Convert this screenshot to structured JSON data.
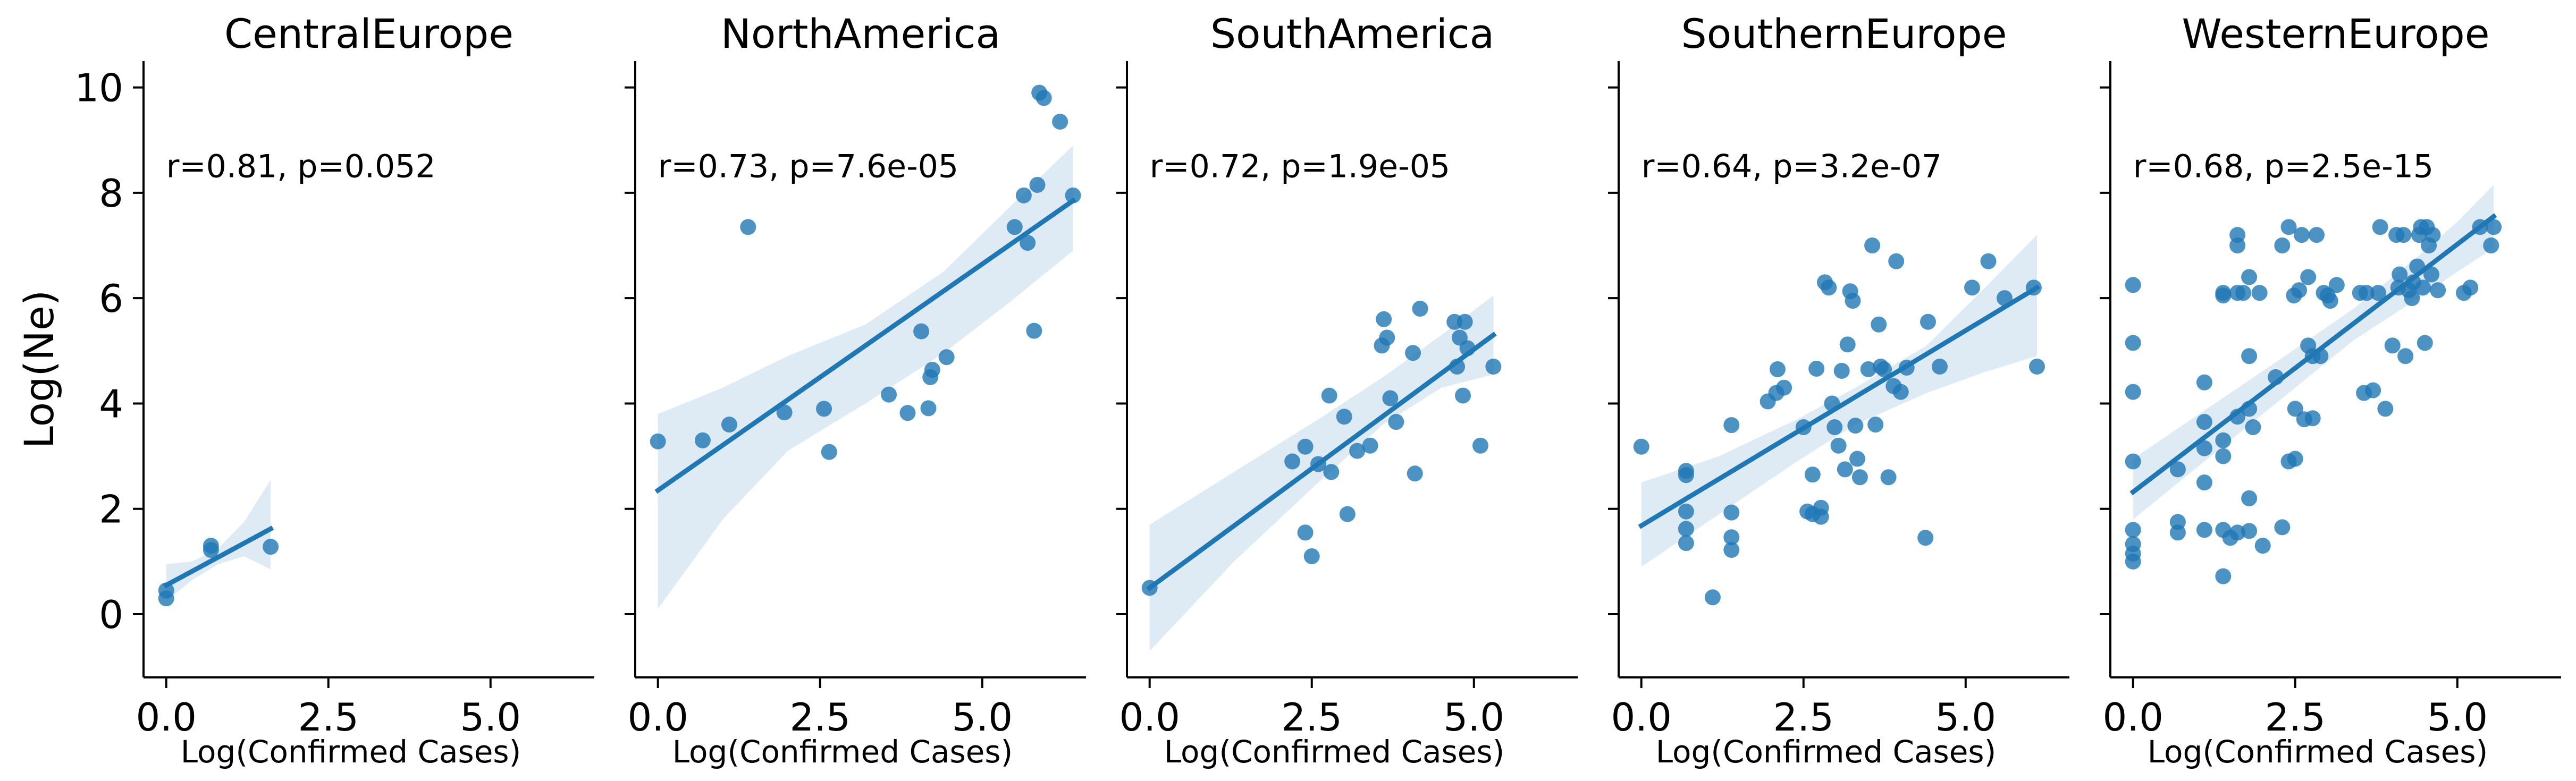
{
  "chart_data": {
    "type": "scatter",
    "layout": "facet-grid",
    "sharey": true,
    "ylabel": "Log(Ne)",
    "xlabel": "Log(Confirmed Cases)",
    "xlim": [
      -0.35,
      6.6
    ],
    "ylim": [
      -1.2,
      10.5
    ],
    "xticks": [
      0.0,
      2.5,
      5.0
    ],
    "xtick_labels": [
      "0.0",
      "2.5",
      "5.0"
    ],
    "yticks": [
      0,
      2,
      4,
      6,
      8,
      10
    ],
    "ytick_labels": [
      "0",
      "2",
      "4",
      "6",
      "8",
      "10"
    ],
    "colors": {
      "points": "#1f77b4",
      "line": "#1f77b4",
      "band": "#1f77b4"
    },
    "panels": [
      {
        "title": "CentralEurope",
        "annotation": "r=0.81, p=0.052",
        "points": [
          [
            0.0,
            0.3
          ],
          [
            0.0,
            0.45
          ],
          [
            0.69,
            1.22
          ],
          [
            0.69,
            1.3
          ],
          [
            1.61,
            1.28
          ]
        ],
        "fit": {
          "x": [
            0.0,
            1.61
          ],
          "y": [
            0.55,
            1.62
          ]
        },
        "ci_band": {
          "x": [
            0.0,
            0.4,
            0.8,
            1.2,
            1.61
          ],
          "lower": [
            0.25,
            0.65,
            0.95,
            1.1,
            0.85
          ],
          "upper": [
            0.95,
            1.0,
            1.25,
            1.75,
            2.55
          ]
        }
      },
      {
        "title": "NorthAmerica",
        "annotation": "r=0.73, p=7.6e-05",
        "points": [
          [
            0.0,
            3.28
          ],
          [
            0.69,
            3.3
          ],
          [
            1.1,
            3.6
          ],
          [
            1.39,
            7.35
          ],
          [
            1.95,
            3.83
          ],
          [
            2.56,
            3.9
          ],
          [
            2.64,
            3.08
          ],
          [
            3.56,
            4.17
          ],
          [
            3.85,
            3.82
          ],
          [
            4.06,
            5.37
          ],
          [
            4.17,
            3.91
          ],
          [
            4.2,
            4.5
          ],
          [
            4.23,
            4.64
          ],
          [
            4.45,
            4.88
          ],
          [
            5.5,
            7.35
          ],
          [
            5.64,
            7.95
          ],
          [
            5.7,
            7.05
          ],
          [
            5.8,
            5.38
          ],
          [
            5.85,
            8.15
          ],
          [
            5.88,
            9.9
          ],
          [
            5.95,
            9.8
          ],
          [
            6.2,
            9.35
          ],
          [
            6.4,
            7.95
          ]
        ],
        "fit": {
          "x": [
            0.0,
            6.4
          ],
          "y": [
            2.35,
            7.85
          ]
        },
        "ci_band": {
          "x": [
            0.0,
            1.0,
            2.0,
            3.2,
            4.4,
            5.4,
            6.4
          ],
          "lower": [
            0.1,
            1.8,
            3.1,
            4.0,
            4.95,
            5.9,
            6.9
          ],
          "upper": [
            3.8,
            4.3,
            4.9,
            5.5,
            6.5,
            7.7,
            8.9
          ]
        }
      },
      {
        "title": "SouthAmerica",
        "annotation": "r=0.72, p=1.9e-05",
        "points": [
          [
            0.0,
            0.5
          ],
          [
            2.2,
            2.9
          ],
          [
            2.4,
            3.18
          ],
          [
            2.4,
            1.55
          ],
          [
            2.5,
            1.1
          ],
          [
            2.6,
            2.85
          ],
          [
            2.77,
            4.15
          ],
          [
            2.8,
            2.7
          ],
          [
            3.0,
            3.75
          ],
          [
            3.05,
            1.9
          ],
          [
            3.2,
            3.1
          ],
          [
            3.4,
            3.2
          ],
          [
            3.58,
            5.1
          ],
          [
            3.61,
            5.6
          ],
          [
            3.66,
            5.25
          ],
          [
            3.71,
            4.1
          ],
          [
            3.8,
            3.65
          ],
          [
            4.06,
            4.96
          ],
          [
            4.09,
            2.67
          ],
          [
            4.17,
            5.8
          ],
          [
            4.7,
            5.55
          ],
          [
            4.74,
            4.7
          ],
          [
            4.78,
            5.25
          ],
          [
            4.83,
            4.15
          ],
          [
            4.86,
            5.55
          ],
          [
            4.9,
            5.05
          ],
          [
            5.1,
            3.2
          ],
          [
            5.3,
            4.7
          ]
        ],
        "fit": {
          "x": [
            0.0,
            5.3
          ],
          "y": [
            0.5,
            5.3
          ]
        },
        "ci_band": {
          "x": [
            0.0,
            1.3,
            2.6,
            3.6,
            4.5,
            5.3
          ],
          "lower": [
            -0.7,
            1.0,
            2.5,
            3.6,
            4.3,
            4.55
          ],
          "upper": [
            1.7,
            2.7,
            3.7,
            4.5,
            5.3,
            6.05
          ]
        }
      },
      {
        "title": "SouthernEurope",
        "annotation": "r=0.64, p=3.2e-07",
        "points": [
          [
            0.0,
            3.18
          ],
          [
            0.69,
            2.72
          ],
          [
            0.69,
            2.64
          ],
          [
            0.69,
            1.95
          ],
          [
            0.69,
            1.62
          ],
          [
            0.69,
            1.35
          ],
          [
            1.1,
            0.32
          ],
          [
            1.39,
            3.59
          ],
          [
            1.39,
            1.93
          ],
          [
            1.39,
            1.46
          ],
          [
            1.39,
            1.22
          ],
          [
            1.95,
            4.04
          ],
          [
            2.08,
            4.2
          ],
          [
            2.1,
            4.65
          ],
          [
            2.2,
            4.3
          ],
          [
            2.5,
            3.55
          ],
          [
            2.56,
            1.95
          ],
          [
            2.64,
            2.65
          ],
          [
            2.64,
            1.9
          ],
          [
            2.7,
            4.66
          ],
          [
            2.77,
            2.02
          ],
          [
            2.77,
            1.85
          ],
          [
            2.83,
            6.3
          ],
          [
            2.89,
            6.2
          ],
          [
            2.94,
            4.0
          ],
          [
            2.98,
            3.55
          ],
          [
            3.04,
            3.2
          ],
          [
            3.09,
            4.62
          ],
          [
            3.14,
            2.75
          ],
          [
            3.18,
            5.12
          ],
          [
            3.22,
            6.13
          ],
          [
            3.26,
            5.95
          ],
          [
            3.3,
            3.58
          ],
          [
            3.33,
            2.95
          ],
          [
            3.37,
            2.6
          ],
          [
            3.5,
            4.65
          ],
          [
            3.56,
            7.0
          ],
          [
            3.61,
            3.6
          ],
          [
            3.66,
            5.5
          ],
          [
            3.69,
            4.7
          ],
          [
            3.74,
            4.65
          ],
          [
            3.81,
            2.6
          ],
          [
            3.89,
            4.33
          ],
          [
            3.93,
            6.7
          ],
          [
            4.0,
            4.22
          ],
          [
            4.09,
            4.68
          ],
          [
            4.38,
            1.45
          ],
          [
            4.42,
            5.55
          ],
          [
            4.6,
            4.7
          ],
          [
            5.1,
            6.2
          ],
          [
            5.35,
            6.7
          ],
          [
            5.6,
            6.0
          ],
          [
            6.05,
            6.2
          ],
          [
            6.1,
            4.7
          ]
        ],
        "fit": {
          "x": [
            0.0,
            6.1
          ],
          "y": [
            1.68,
            6.2
          ]
        },
        "ci_band": {
          "x": [
            0.0,
            1.2,
            2.4,
            3.3,
            4.4,
            5.3,
            6.1
          ],
          "lower": [
            0.9,
            1.9,
            2.9,
            3.6,
            4.2,
            4.6,
            4.9
          ],
          "upper": [
            2.5,
            3.0,
            3.7,
            4.3,
            5.1,
            6.2,
            7.2
          ]
        }
      },
      {
        "title": "WesternEurope",
        "annotation": "r=0.68, p=2.5e-15",
        "points": [
          [
            0.0,
            6.25
          ],
          [
            0.0,
            5.15
          ],
          [
            0.0,
            4.22
          ],
          [
            0.0,
            2.9
          ],
          [
            0.0,
            1.6
          ],
          [
            0.0,
            1.33
          ],
          [
            0.0,
            1.15
          ],
          [
            0.0,
            1.0
          ],
          [
            0.69,
            1.75
          ],
          [
            0.69,
            1.55
          ],
          [
            0.69,
            2.75
          ],
          [
            1.1,
            4.4
          ],
          [
            1.1,
            3.65
          ],
          [
            1.1,
            3.15
          ],
          [
            1.1,
            2.5
          ],
          [
            1.1,
            1.6
          ],
          [
            1.39,
            6.1
          ],
          [
            1.39,
            6.05
          ],
          [
            1.39,
            3.3
          ],
          [
            1.39,
            3.0
          ],
          [
            1.39,
            1.6
          ],
          [
            1.39,
            0.72
          ],
          [
            1.5,
            1.45
          ],
          [
            1.61,
            7.2
          ],
          [
            1.61,
            7.0
          ],
          [
            1.61,
            6.1
          ],
          [
            1.61,
            3.75
          ],
          [
            1.61,
            1.55
          ],
          [
            1.7,
            6.1
          ],
          [
            1.79,
            6.4
          ],
          [
            1.79,
            4.9
          ],
          [
            1.79,
            3.9
          ],
          [
            1.79,
            2.2
          ],
          [
            1.79,
            1.58
          ],
          [
            1.85,
            3.55
          ],
          [
            1.95,
            6.1
          ],
          [
            2.0,
            1.3
          ],
          [
            2.2,
            4.5
          ],
          [
            2.3,
            7.0
          ],
          [
            2.3,
            1.65
          ],
          [
            2.4,
            7.35
          ],
          [
            2.4,
            2.9
          ],
          [
            2.48,
            6.05
          ],
          [
            2.5,
            2.95
          ],
          [
            2.5,
            3.9
          ],
          [
            2.56,
            6.15
          ],
          [
            2.6,
            7.2
          ],
          [
            2.64,
            3.7
          ],
          [
            2.7,
            6.4
          ],
          [
            2.7,
            5.1
          ],
          [
            2.77,
            4.9
          ],
          [
            2.77,
            3.72
          ],
          [
            2.83,
            7.2
          ],
          [
            2.89,
            4.9
          ],
          [
            2.94,
            6.1
          ],
          [
            3.0,
            6.05
          ],
          [
            3.04,
            5.95
          ],
          [
            3.14,
            6.25
          ],
          [
            3.5,
            6.1
          ],
          [
            3.56,
            4.2
          ],
          [
            3.6,
            6.1
          ],
          [
            3.7,
            4.25
          ],
          [
            3.78,
            6.1
          ],
          [
            3.81,
            7.35
          ],
          [
            3.89,
            3.9
          ],
          [
            4.0,
            5.1
          ],
          [
            4.06,
            7.2
          ],
          [
            4.09,
            6.2
          ],
          [
            4.11,
            6.45
          ],
          [
            4.17,
            7.2
          ],
          [
            4.2,
            4.9
          ],
          [
            4.25,
            6.15
          ],
          [
            4.3,
            6.0
          ],
          [
            4.32,
            6.3
          ],
          [
            4.38,
            6.6
          ],
          [
            4.41,
            7.2
          ],
          [
            4.44,
            7.35
          ],
          [
            4.47,
            6.2
          ],
          [
            4.5,
            5.15
          ],
          [
            4.53,
            7.35
          ],
          [
            4.56,
            7.0
          ],
          [
            4.6,
            6.45
          ],
          [
            4.62,
            7.2
          ],
          [
            4.7,
            6.15
          ],
          [
            5.1,
            6.1
          ],
          [
            5.2,
            6.2
          ],
          [
            5.35,
            7.35
          ],
          [
            5.52,
            7.0
          ],
          [
            5.56,
            7.35
          ]
        ],
        "fit": {
          "x": [
            0.0,
            5.56
          ],
          "y": [
            2.32,
            7.55
          ]
        },
        "ci_band": {
          "x": [
            0.0,
            1.2,
            2.4,
            3.4,
            4.4,
            5.0,
            5.56
          ],
          "lower": [
            1.8,
            3.0,
            4.2,
            5.2,
            6.0,
            6.5,
            6.95
          ],
          "upper": [
            2.95,
            3.95,
            4.95,
            5.8,
            6.8,
            7.45,
            8.15
          ]
        }
      }
    ]
  }
}
